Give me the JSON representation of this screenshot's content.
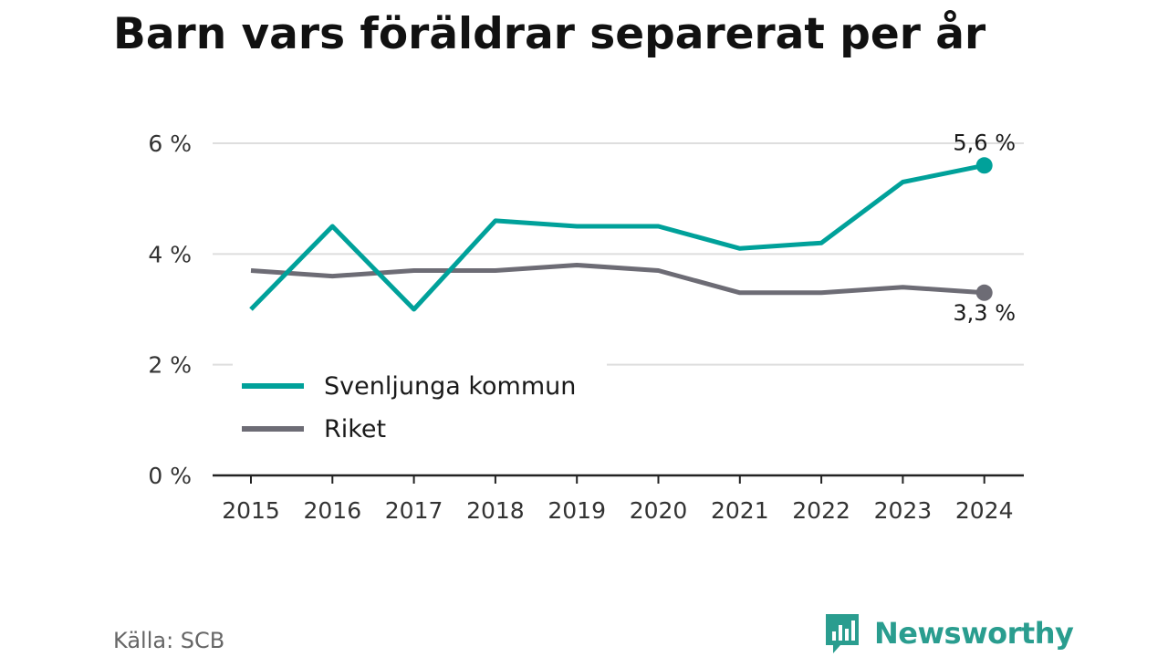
{
  "chart_data": {
    "type": "line",
    "title": "Barn vars föräldrar separerat per år",
    "x": [
      "2015",
      "2016",
      "2017",
      "2018",
      "2019",
      "2020",
      "2021",
      "2022",
      "2023",
      "2024"
    ],
    "series": [
      {
        "name": "Svenljunga kommun",
        "color": "#00a19a",
        "values": [
          3.0,
          4.5,
          3.0,
          4.6,
          4.5,
          4.5,
          4.1,
          4.2,
          5.3,
          5.6
        ],
        "end_label": "5,6 %"
      },
      {
        "name": "Riket",
        "color": "#6d6c75",
        "values": [
          3.7,
          3.6,
          3.7,
          3.7,
          3.8,
          3.7,
          3.3,
          3.3,
          3.4,
          3.3
        ],
        "end_label": "3,3 %"
      }
    ],
    "y_ticks": [
      0,
      2,
      4,
      6
    ],
    "y_tick_labels": [
      "0 %",
      "2 %",
      "4 %",
      "6 %"
    ],
    "ylim": [
      0,
      6
    ],
    "grid": true,
    "legend_position": "bottom-left"
  },
  "source": "Källa: SCB",
  "brand": {
    "name": "Newsworthy",
    "color": "#2a9d8f",
    "icon": "bar-chart-speech-bubble-icon"
  }
}
